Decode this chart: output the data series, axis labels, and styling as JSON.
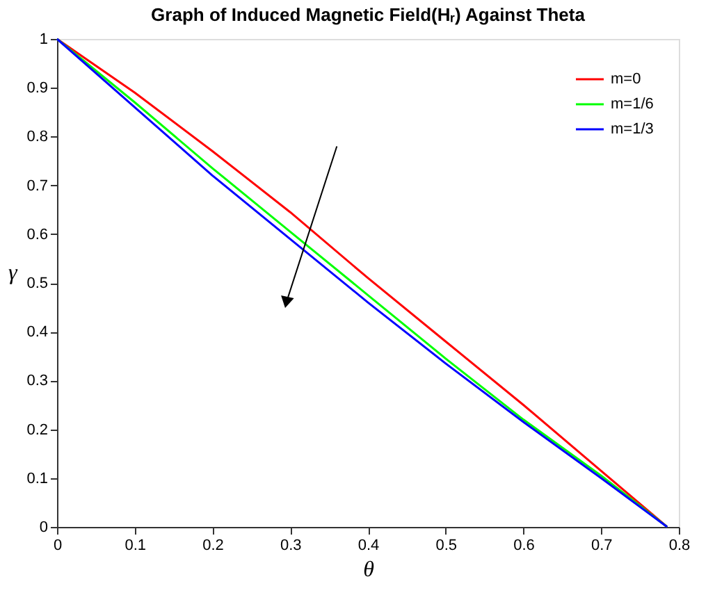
{
  "chart_data": {
    "type": "line",
    "title": "Graph of Induced Magnetic Field(Hᵣ) Against Theta",
    "xlabel": "θ",
    "ylabel": "γ",
    "x": [
      0,
      0.1,
      0.2,
      0.3,
      0.4,
      0.5,
      0.6,
      0.7,
      0.785
    ],
    "series": [
      {
        "name": "m=0",
        "color": "#ff0000",
        "values": [
          1,
          0.89,
          0.77,
          0.645,
          0.51,
          0.38,
          0.25,
          0.115,
          0
        ]
      },
      {
        "name": "m=1/6",
        "color": "#00ff00",
        "values": [
          1,
          0.87,
          0.735,
          0.605,
          0.475,
          0.345,
          0.22,
          0.105,
          0
        ]
      },
      {
        "name": "m=1/3",
        "color": "#0000ff",
        "values": [
          1,
          0.86,
          0.72,
          0.59,
          0.46,
          0.335,
          0.215,
          0.1,
          0
        ]
      }
    ],
    "xlim": [
      0,
      0.8
    ],
    "xticks": [
      0,
      0.1,
      0.2,
      0.3,
      0.4,
      0.5,
      0.6,
      0.7,
      0.8
    ],
    "ylim": [
      0,
      1
    ],
    "yticks": [
      0,
      0.1,
      0.2,
      0.3,
      0.4,
      0.5,
      0.6,
      0.7,
      0.8,
      0.9,
      1
    ],
    "grid": false,
    "legend": "top right",
    "marker": "none",
    "line_style": "solid"
  }
}
